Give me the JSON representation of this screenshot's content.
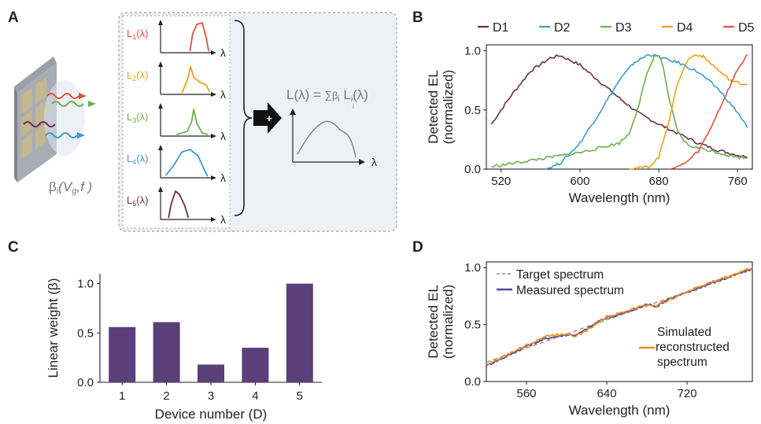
{
  "panels": {
    "a": "A",
    "b": "B",
    "c": "C",
    "d": "D"
  },
  "schematic": {
    "device_label": "β",
    "device_label_sub": "i",
    "device_label_args": "(V",
    "device_label_args_sub": "g",
    "device_label_args_tail": ",f )",
    "lambda": "λ",
    "spectra_labels": [
      {
        "base": "L",
        "sub": "1",
        "tail": "(λ)",
        "color": "#e0503a"
      },
      {
        "base": "L",
        "sub": "2",
        "tail": "(λ)",
        "color": "#e8a317"
      },
      {
        "base": "L",
        "sub": "3",
        "tail": "(λ)",
        "color": "#6ab04c"
      },
      {
        "base": "L",
        "sub": "4",
        "tail": "(λ)",
        "color": "#3a9cc9"
      },
      {
        "base": "L",
        "sub": "5",
        "tail": "(λ)",
        "color": "#6b2d4e"
      }
    ],
    "equation_left": "L(λ) = ",
    "equation_sum": "∑",
    "equation_sum_index": "i",
    "equation_right_base": "β",
    "equation_right_sub": "i",
    "equation_right_L": " L",
    "equation_right_L_sub": "i",
    "equation_right_tail": "(λ)",
    "plus_icon": "+"
  },
  "chart_data": [
    {
      "id": "B",
      "type": "line",
      "xlabel": "Wavelength (nm)",
      "ylabel": [
        "Detected EL",
        "(normalized)"
      ],
      "xlim": [
        505,
        775
      ],
      "ylim": [
        0,
        1.05
      ],
      "xticks": [
        520,
        600,
        680,
        760
      ],
      "yticks": [
        0.0,
        0.5,
        1.0
      ],
      "ytick_labels": [
        "0.0",
        "0.5",
        "1.0"
      ],
      "legend_placement": "top",
      "series": [
        {
          "name": "D1",
          "color": "#6b2d4e",
          "x": [
            510,
            530,
            550,
            570,
            580,
            600,
            620,
            640,
            660,
            680,
            700,
            720,
            740,
            760,
            770
          ],
          "y": [
            0.38,
            0.62,
            0.83,
            0.94,
            0.96,
            0.88,
            0.74,
            0.6,
            0.47,
            0.38,
            0.3,
            0.22,
            0.16,
            0.12,
            0.1
          ]
        },
        {
          "name": "D2",
          "color": "#3a9cc9",
          "x": [
            565,
            580,
            600,
            620,
            640,
            655,
            670,
            680,
            690,
            700,
            720,
            740,
            760,
            770
          ],
          "y": [
            0.0,
            0.05,
            0.22,
            0.48,
            0.75,
            0.9,
            0.97,
            0.95,
            0.92,
            0.9,
            0.82,
            0.68,
            0.48,
            0.35
          ]
        },
        {
          "name": "D3",
          "color": "#6ab04c",
          "x": [
            510,
            540,
            570,
            600,
            620,
            640,
            650,
            660,
            668,
            675,
            680,
            685,
            690,
            700,
            710,
            720,
            740,
            760,
            770
          ],
          "y": [
            0.02,
            0.06,
            0.1,
            0.14,
            0.18,
            0.22,
            0.3,
            0.55,
            0.8,
            0.95,
            0.96,
            0.85,
            0.6,
            0.3,
            0.2,
            0.18,
            0.14,
            0.1,
            0.1
          ]
        },
        {
          "name": "D4",
          "color": "#e8a317",
          "x": [
            650,
            670,
            680,
            690,
            700,
            710,
            718,
            725,
            735,
            745,
            755,
            765,
            770
          ],
          "y": [
            0.0,
            0.02,
            0.1,
            0.4,
            0.75,
            0.93,
            0.97,
            0.95,
            0.88,
            0.8,
            0.74,
            0.72,
            0.72
          ]
        },
        {
          "name": "D5",
          "color": "#e0503a",
          "x": [
            690,
            700,
            710,
            720,
            730,
            740,
            750,
            760,
            770
          ],
          "y": [
            0.0,
            0.02,
            0.07,
            0.15,
            0.3,
            0.48,
            0.66,
            0.84,
            0.97
          ]
        }
      ]
    },
    {
      "id": "C",
      "type": "bar",
      "xlabel": "Device number (D)",
      "ylabel": "Linear weight (β)",
      "categories": [
        "1",
        "2",
        "3",
        "4",
        "5"
      ],
      "values": [
        0.56,
        0.61,
        0.18,
        0.35,
        1.0
      ],
      "ylim": [
        0,
        1.1
      ],
      "yticks": [
        0.0,
        0.5,
        1.0
      ],
      "ytick_labels": [
        "0.0",
        "0.5",
        "1.0"
      ],
      "color": "#5b3f7a"
    },
    {
      "id": "D",
      "type": "line",
      "xlabel": "Wavelength (nm)",
      "ylabel": [
        "Detected EL",
        "(normalized)"
      ],
      "xlim": [
        520,
        785
      ],
      "ylim": [
        0,
        1.05
      ],
      "xticks": [
        560,
        640,
        720
      ],
      "yticks": [
        0.0,
        0.5,
        1.0
      ],
      "ytick_labels": [
        "0.0",
        "0.5",
        "1.0"
      ],
      "legend_placement": "top-left",
      "series": [
        {
          "name": "Target spectrum",
          "color": "#9a9a9a",
          "dashed": true,
          "x": [
            520,
            785
          ],
          "y": [
            0.17,
            0.99
          ]
        },
        {
          "name": "Measured spectrum",
          "color": "#4c4d9c",
          "x": [
            520,
            540,
            560,
            580,
            600,
            610,
            620,
            630,
            640,
            650,
            660,
            670,
            680,
            690,
            700,
            720,
            740,
            760,
            785
          ],
          "y": [
            0.14,
            0.22,
            0.31,
            0.38,
            0.41,
            0.41,
            0.46,
            0.52,
            0.56,
            0.58,
            0.61,
            0.64,
            0.68,
            0.66,
            0.72,
            0.78,
            0.85,
            0.91,
            0.99
          ]
        },
        {
          "name": "Simulated reconstructed spectrum",
          "color": "#e8891a",
          "x": [
            520,
            540,
            560,
            580,
            600,
            610,
            620,
            630,
            640,
            650,
            660,
            670,
            680,
            690,
            700,
            720,
            740,
            760,
            785
          ],
          "y": [
            0.15,
            0.23,
            0.32,
            0.4,
            0.42,
            0.4,
            0.45,
            0.51,
            0.57,
            0.59,
            0.62,
            0.65,
            0.67,
            0.67,
            0.71,
            0.79,
            0.86,
            0.92,
            1.0
          ]
        }
      ],
      "annotation": [
        "Simulated",
        "reconstructed",
        "spectrum"
      ]
    }
  ]
}
